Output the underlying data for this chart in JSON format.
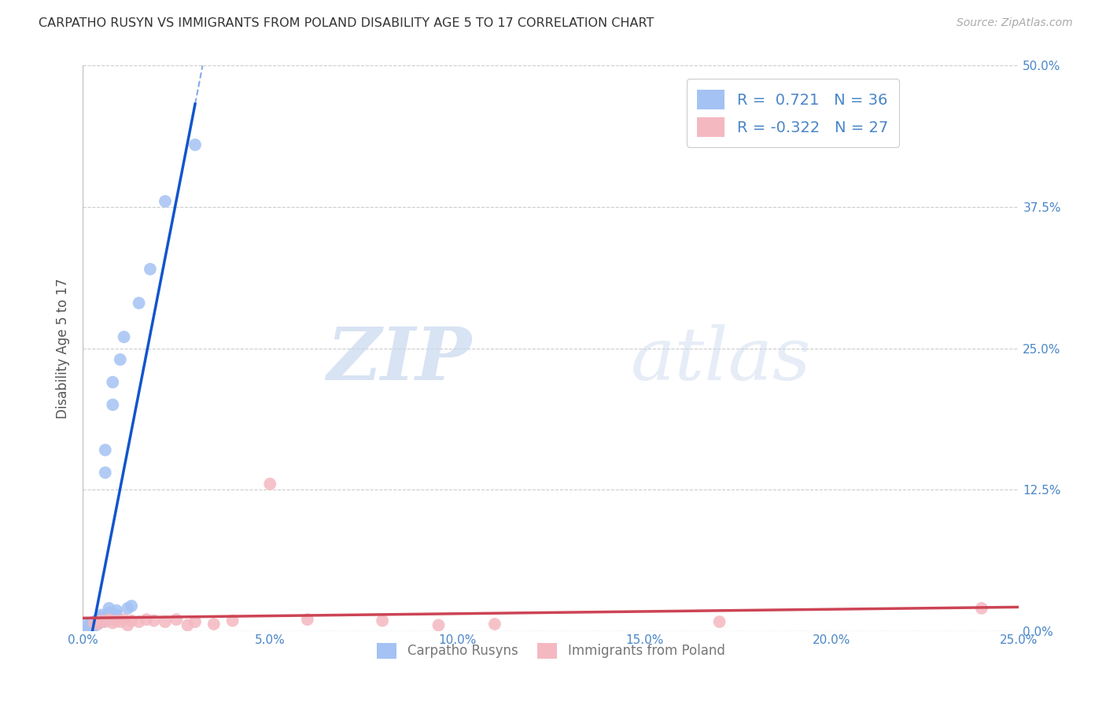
{
  "title": "CARPATHO RUSYN VS IMMIGRANTS FROM POLAND DISABILITY AGE 5 TO 17 CORRELATION CHART",
  "source": "Source: ZipAtlas.com",
  "ylabel": "Disability Age 5 to 17",
  "xlim": [
    0.0,
    0.25
  ],
  "ylim": [
    0.0,
    0.5
  ],
  "xticks": [
    0.0,
    0.05,
    0.1,
    0.15,
    0.2,
    0.25
  ],
  "yticks": [
    0.0,
    0.125,
    0.25,
    0.375,
    0.5
  ],
  "xticklabels": [
    "0.0%",
    "5.0%",
    "10.0%",
    "15.0%",
    "20.0%",
    "25.0%"
  ],
  "yticklabels_right": [
    "0.0%",
    "12.5%",
    "25.0%",
    "37.5%",
    "50.0%"
  ],
  "blue_r": 0.721,
  "blue_n": 36,
  "pink_r": -0.322,
  "pink_n": 27,
  "blue_color": "#a4c2f4",
  "pink_color": "#f4b8c1",
  "blue_line_color": "#1155cc",
  "pink_line_color": "#cc4455",
  "legend_text_color": "#4a86c8",
  "watermark_zip": "ZIP",
  "watermark_atlas": "atlas",
  "background_color": "#ffffff",
  "grid_color": "#cccccc",
  "blue_points_x": [
    0.001,
    0.001,
    0.002,
    0.002,
    0.002,
    0.003,
    0.003,
    0.003,
    0.003,
    0.003,
    0.004,
    0.004,
    0.004,
    0.004,
    0.005,
    0.005,
    0.005,
    0.005,
    0.006,
    0.006,
    0.006,
    0.007,
    0.007,
    0.007,
    0.008,
    0.008,
    0.009,
    0.009,
    0.01,
    0.011,
    0.012,
    0.013,
    0.015,
    0.018,
    0.022,
    0.03
  ],
  "blue_points_y": [
    0.0,
    0.005,
    0.002,
    0.003,
    0.006,
    0.004,
    0.005,
    0.005,
    0.007,
    0.008,
    0.006,
    0.007,
    0.008,
    0.01,
    0.008,
    0.01,
    0.012,
    0.014,
    0.01,
    0.14,
    0.16,
    0.012,
    0.016,
    0.02,
    0.2,
    0.22,
    0.014,
    0.018,
    0.24,
    0.26,
    0.02,
    0.022,
    0.29,
    0.32,
    0.38,
    0.43
  ],
  "pink_points_x": [
    0.003,
    0.004,
    0.005,
    0.006,
    0.007,
    0.008,
    0.009,
    0.01,
    0.011,
    0.012,
    0.013,
    0.015,
    0.017,
    0.019,
    0.022,
    0.025,
    0.028,
    0.03,
    0.035,
    0.04,
    0.05,
    0.06,
    0.08,
    0.095,
    0.11,
    0.17,
    0.24
  ],
  "pink_points_y": [
    0.007,
    0.006,
    0.009,
    0.008,
    0.01,
    0.007,
    0.009,
    0.008,
    0.01,
    0.005,
    0.009,
    0.008,
    0.01,
    0.009,
    0.008,
    0.01,
    0.005,
    0.008,
    0.006,
    0.009,
    0.13,
    0.01,
    0.009,
    0.005,
    0.006,
    0.008,
    0.02
  ]
}
